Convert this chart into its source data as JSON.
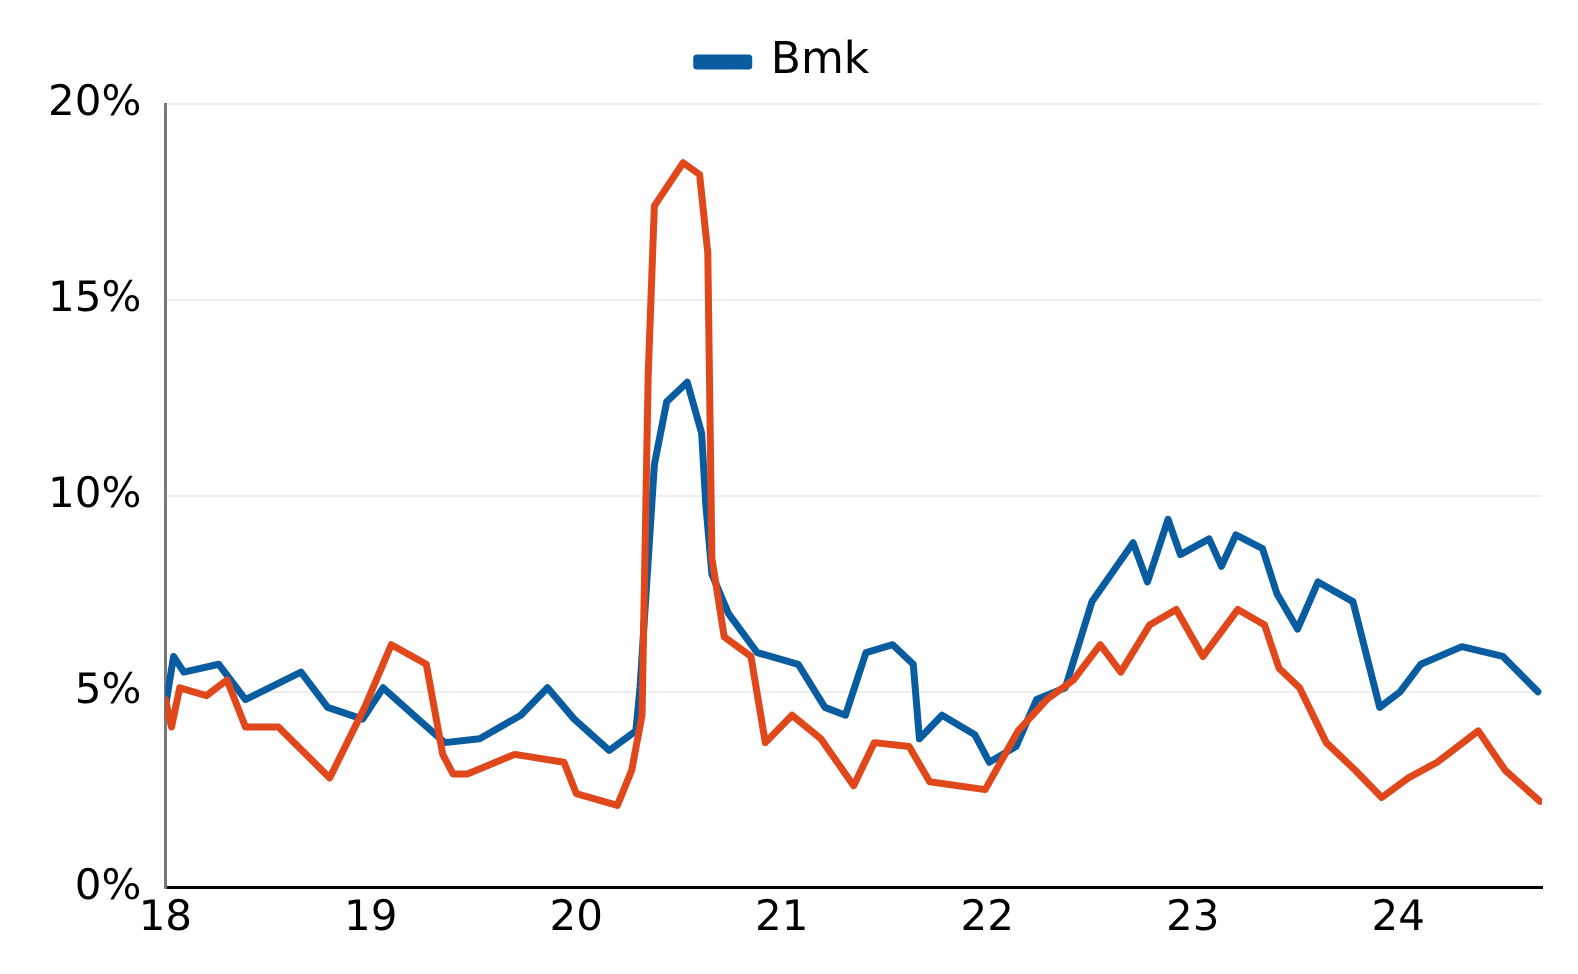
{
  "chart_data": {
    "type": "line",
    "xlim": [
      18,
      24.7
    ],
    "xticks": [
      18,
      19,
      20,
      21,
      22,
      23,
      24
    ],
    "ylim": [
      0,
      20
    ],
    "yticks": [
      {
        "value": 0,
        "label": "0%"
      },
      {
        "value": 5,
        "label": "5%"
      },
      {
        "value": 10,
        "label": "10%"
      },
      {
        "value": 15,
        "label": "15%"
      },
      {
        "value": 20,
        "label": "20%"
      }
    ],
    "grid": "y",
    "legend": "top",
    "marker": "none",
    "line_style": "solid",
    "series": [
      {
        "color": "#e0481c",
        "x": [
          18.0,
          18.03,
          18.07,
          18.2,
          18.3,
          18.39,
          18.55,
          18.8,
          18.97,
          19.1,
          19.27,
          19.35,
          19.4,
          19.47,
          19.7,
          19.94,
          20.0,
          20.2,
          20.27,
          20.32,
          20.35,
          20.38,
          20.52,
          20.6,
          20.64,
          20.66,
          20.72,
          20.85,
          20.92,
          21.05,
          21.19,
          21.35,
          21.45,
          21.62,
          21.72,
          21.99,
          22.15,
          22.29,
          22.42,
          22.55,
          22.65,
          22.79,
          22.92,
          23.05,
          23.22,
          23.35,
          23.42,
          23.52,
          23.65,
          23.79,
          23.92,
          24.05,
          24.19,
          24.39,
          24.52,
          24.69
        ],
        "values": [
          4.8,
          4.1,
          5.1,
          4.9,
          5.3,
          4.1,
          4.1,
          2.8,
          4.6,
          6.2,
          5.7,
          3.4,
          2.9,
          2.9,
          3.4,
          3.2,
          2.4,
          2.1,
          3.0,
          4.4,
          13.1,
          17.4,
          18.5,
          18.2,
          16.2,
          8.4,
          6.4,
          5.9,
          3.7,
          4.4,
          3.8,
          2.6,
          3.7,
          3.6,
          2.7,
          2.5,
          4.0,
          4.8,
          5.3,
          6.2,
          5.5,
          6.7,
          7.1,
          5.9,
          7.1,
          6.7,
          5.6,
          5.1,
          3.7,
          3.0,
          2.3,
          2.8,
          3.2,
          4.0,
          3.0,
          2.2
        ]
      },
      {
        "name": "Bmk",
        "color": "#0a5ca0",
        "x": [
          18.0,
          18.04,
          18.09,
          18.26,
          18.39,
          18.66,
          18.79,
          18.96,
          19.06,
          19.23,
          19.36,
          19.53,
          19.73,
          19.86,
          19.99,
          20.16,
          20.29,
          20.31,
          20.38,
          20.44,
          20.54,
          20.61,
          20.63,
          20.66,
          20.74,
          20.88,
          21.08,
          21.21,
          21.31,
          21.41,
          21.54,
          21.64,
          21.67,
          21.78,
          21.94,
          22.01,
          22.14,
          22.24,
          22.38,
          22.51,
          22.71,
          22.78,
          22.88,
          22.94,
          23.08,
          23.14,
          23.21,
          23.34,
          23.41,
          23.51,
          23.61,
          23.78,
          23.91,
          24.01,
          24.11,
          24.31,
          24.51,
          24.68
        ],
        "values": [
          4.6,
          5.9,
          5.5,
          5.7,
          4.8,
          5.5,
          4.6,
          4.3,
          5.1,
          4.3,
          3.7,
          3.8,
          4.4,
          5.1,
          4.3,
          3.5,
          4.0,
          5.1,
          10.8,
          12.4,
          12.9,
          11.6,
          9.8,
          8.0,
          7.0,
          6.0,
          5.7,
          4.6,
          4.4,
          6.0,
          6.2,
          5.7,
          3.8,
          4.4,
          3.9,
          3.2,
          3.6,
          4.8,
          5.1,
          7.3,
          8.8,
          7.8,
          9.4,
          8.5,
          8.9,
          8.2,
          9.0,
          8.65,
          7.5,
          6.6,
          7.8,
          7.3,
          4.6,
          5.0,
          5.7,
          6.15,
          5.9,
          5.0
        ]
      }
    ]
  }
}
